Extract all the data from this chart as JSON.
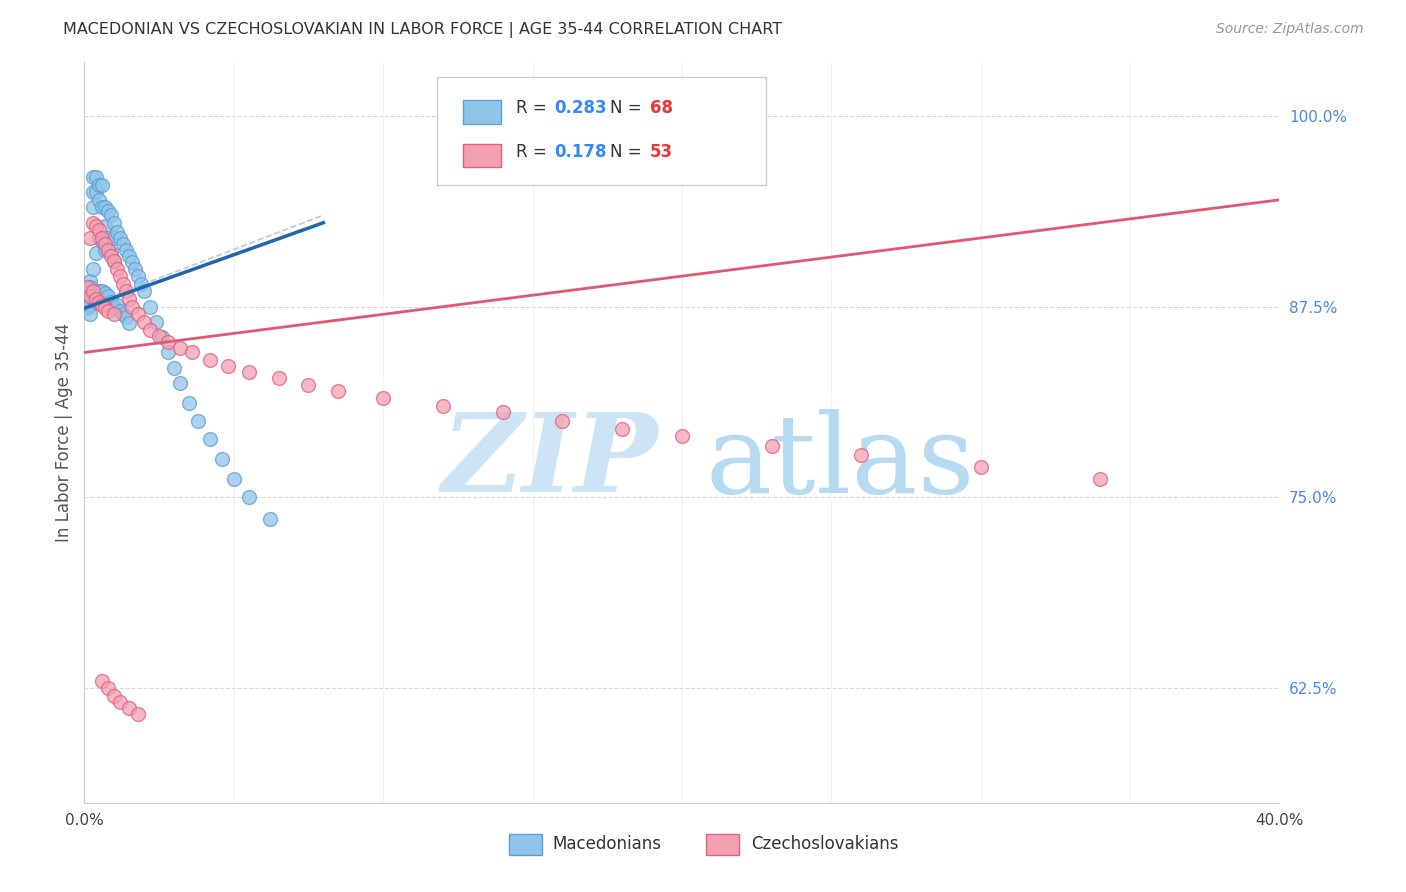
{
  "title": "MACEDONIAN VS CZECHOSLOVAKIAN IN LABOR FORCE | AGE 35-44 CORRELATION CHART",
  "source": "Source: ZipAtlas.com",
  "ylabel": "In Labor Force | Age 35-44",
  "r_macedonian": "0.283",
  "n_macedonian": "68",
  "r_czechoslovakian": "0.178",
  "n_czechoslovakian": "53",
  "macedonian_color": "#90c4e8",
  "macedonian_edge_color": "#5a9fd4",
  "czechoslovakian_color": "#f4a0b0",
  "czechoslovakian_edge_color": "#e06080",
  "macedonian_trend_color": "#2166ac",
  "czechoslovakian_trend_color": "#e05878",
  "ref_line_color": "#b0b8d8",
  "background_color": "#ffffff",
  "grid_color": "#d8d8d8",
  "xlim": [
    0.0,
    0.4
  ],
  "ylim": [
    0.55,
    1.035
  ],
  "y_ticks": [
    0.625,
    0.75,
    0.875,
    1.0
  ],
  "y_tick_labels": [
    "62.5%",
    "75.0%",
    "87.5%",
    "100.0%"
  ],
  "x_ticks": [
    0.0,
    0.05,
    0.1,
    0.15,
    0.2,
    0.25,
    0.3,
    0.35,
    0.4
  ],
  "x_tick_labels": [
    "0.0%",
    "",
    "",
    "",
    "",
    "",
    "",
    "",
    "40.0%"
  ],
  "macedonian_trend_x": [
    0.0,
    0.08
  ],
  "macedonian_trend_y": [
    0.874,
    0.93
  ],
  "czechoslovakian_trend_x": [
    0.0,
    0.4
  ],
  "czechoslovakian_trend_y": [
    0.845,
    0.945
  ],
  "ref_line_x": [
    0.0,
    0.08
  ],
  "ref_line_y": [
    0.875,
    0.935
  ],
  "macedonians_x": [
    0.001,
    0.001,
    0.001,
    0.001,
    0.002,
    0.002,
    0.002,
    0.002,
    0.002,
    0.003,
    0.003,
    0.003,
    0.003,
    0.003,
    0.004,
    0.004,
    0.004,
    0.004,
    0.005,
    0.005,
    0.005,
    0.005,
    0.006,
    0.006,
    0.006,
    0.006,
    0.007,
    0.007,
    0.007,
    0.007,
    0.008,
    0.008,
    0.008,
    0.009,
    0.009,
    0.009,
    0.01,
    0.01,
    0.01,
    0.01,
    0.011,
    0.011,
    0.012,
    0.012,
    0.013,
    0.013,
    0.014,
    0.014,
    0.015,
    0.015,
    0.016,
    0.017,
    0.018,
    0.019,
    0.02,
    0.022,
    0.024,
    0.026,
    0.028,
    0.03,
    0.032,
    0.035,
    0.038,
    0.042,
    0.046,
    0.05,
    0.055,
    0.062
  ],
  "macedonians_y": [
    0.88,
    0.878,
    0.876,
    0.874,
    0.892,
    0.888,
    0.882,
    0.876,
    0.87,
    0.96,
    0.95,
    0.94,
    0.9,
    0.88,
    0.96,
    0.95,
    0.91,
    0.88,
    0.955,
    0.945,
    0.92,
    0.885,
    0.955,
    0.94,
    0.918,
    0.885,
    0.94,
    0.928,
    0.912,
    0.884,
    0.938,
    0.92,
    0.882,
    0.935,
    0.91,
    0.878,
    0.93,
    0.92,
    0.905,
    0.875,
    0.924,
    0.876,
    0.92,
    0.872,
    0.916,
    0.87,
    0.912,
    0.868,
    0.908,
    0.864,
    0.904,
    0.9,
    0.895,
    0.89,
    0.885,
    0.875,
    0.865,
    0.855,
    0.845,
    0.835,
    0.825,
    0.812,
    0.8,
    0.788,
    0.775,
    0.762,
    0.75,
    0.736
  ],
  "czechoslovakians_x": [
    0.001,
    0.002,
    0.002,
    0.003,
    0.003,
    0.004,
    0.004,
    0.005,
    0.005,
    0.006,
    0.006,
    0.007,
    0.007,
    0.008,
    0.008,
    0.009,
    0.01,
    0.01,
    0.011,
    0.012,
    0.013,
    0.014,
    0.015,
    0.016,
    0.018,
    0.02,
    0.022,
    0.025,
    0.028,
    0.032,
    0.036,
    0.042,
    0.048,
    0.055,
    0.065,
    0.075,
    0.085,
    0.1,
    0.12,
    0.14,
    0.16,
    0.18,
    0.2,
    0.23,
    0.26,
    0.3,
    0.34,
    0.006,
    0.008,
    0.01,
    0.012,
    0.015,
    0.018
  ],
  "czechoslovakians_y": [
    0.888,
    0.92,
    0.882,
    0.93,
    0.885,
    0.928,
    0.88,
    0.925,
    0.878,
    0.92,
    0.876,
    0.916,
    0.874,
    0.912,
    0.872,
    0.908,
    0.905,
    0.87,
    0.9,
    0.895,
    0.89,
    0.885,
    0.88,
    0.875,
    0.87,
    0.865,
    0.86,
    0.856,
    0.852,
    0.848,
    0.845,
    0.84,
    0.836,
    0.832,
    0.828,
    0.824,
    0.82,
    0.815,
    0.81,
    0.806,
    0.8,
    0.795,
    0.79,
    0.784,
    0.778,
    0.77,
    0.762,
    0.63,
    0.625,
    0.62,
    0.616,
    0.612,
    0.608
  ],
  "legend_macedonians": "Macedonians",
  "legend_czechoslovakians": "Czechoslovakians"
}
